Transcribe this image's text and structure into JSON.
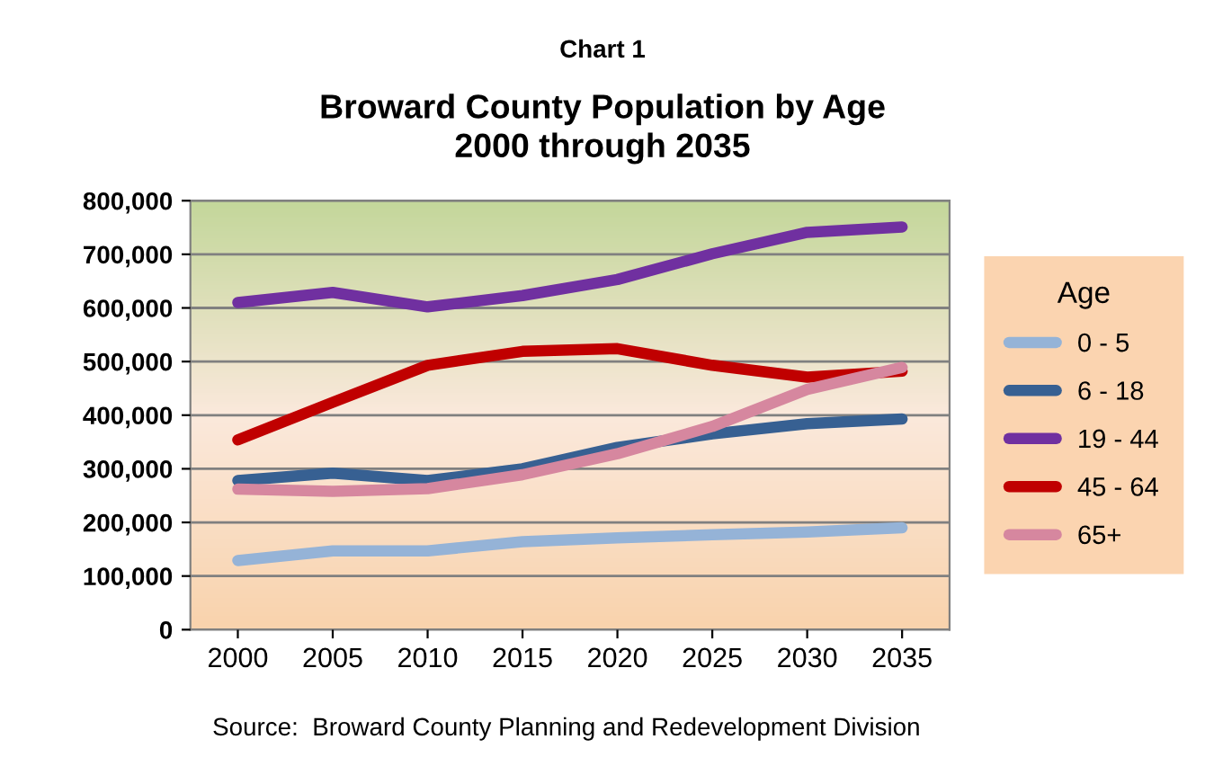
{
  "chart_data": {
    "type": "line",
    "subtitle": "Chart 1",
    "title": "Broward County Population by Age\n2000 through 2035",
    "categories": [
      "2000",
      "2005",
      "2010",
      "2015",
      "2020",
      "2025",
      "2030",
      "2035"
    ],
    "series": [
      {
        "name": "0 - 5",
        "color": "#95b3d7",
        "values": [
          129000,
          147000,
          147000,
          164000,
          171000,
          177000,
          182000,
          190000
        ]
      },
      {
        "name": "6 - 18",
        "color": "#376092",
        "values": [
          278000,
          292000,
          278000,
          300000,
          340000,
          365000,
          384000,
          393000
        ]
      },
      {
        "name": "19 - 44",
        "color": "#7030a0",
        "values": [
          610000,
          629000,
          602000,
          623000,
          653000,
          701000,
          741000,
          751000
        ]
      },
      {
        "name": "45 - 64",
        "color": "#c00000",
        "values": [
          354000,
          424000,
          493000,
          519000,
          524000,
          493000,
          471000,
          482000
        ]
      },
      {
        "name": "65+",
        "color": "#d6879f",
        "values": [
          262000,
          258000,
          263000,
          289000,
          328000,
          379000,
          448000,
          489000
        ]
      }
    ],
    "ylim": [
      0,
      800000
    ],
    "yticks": [
      0,
      {
        "value": 100000,
        "label": "100,000"
      },
      {
        "value": 200000,
        "label": "200,000"
      },
      {
        "value": 300000,
        "label": "300,000"
      },
      {
        "value": 400000,
        "label": "400,000"
      },
      {
        "value": 500000,
        "label": "500,000"
      },
      {
        "value": 600000,
        "label": "600,000"
      },
      {
        "value": 700000,
        "label": "700,000"
      },
      {
        "value": 800000,
        "label": "800,000"
      }
    ],
    "grid": "y",
    "legend": "right",
    "legend_title": "Age",
    "marker": "none",
    "line_style": "solid",
    "annotations": [
      "Source:  Broward County Planning and Redevelopment Division"
    ]
  }
}
